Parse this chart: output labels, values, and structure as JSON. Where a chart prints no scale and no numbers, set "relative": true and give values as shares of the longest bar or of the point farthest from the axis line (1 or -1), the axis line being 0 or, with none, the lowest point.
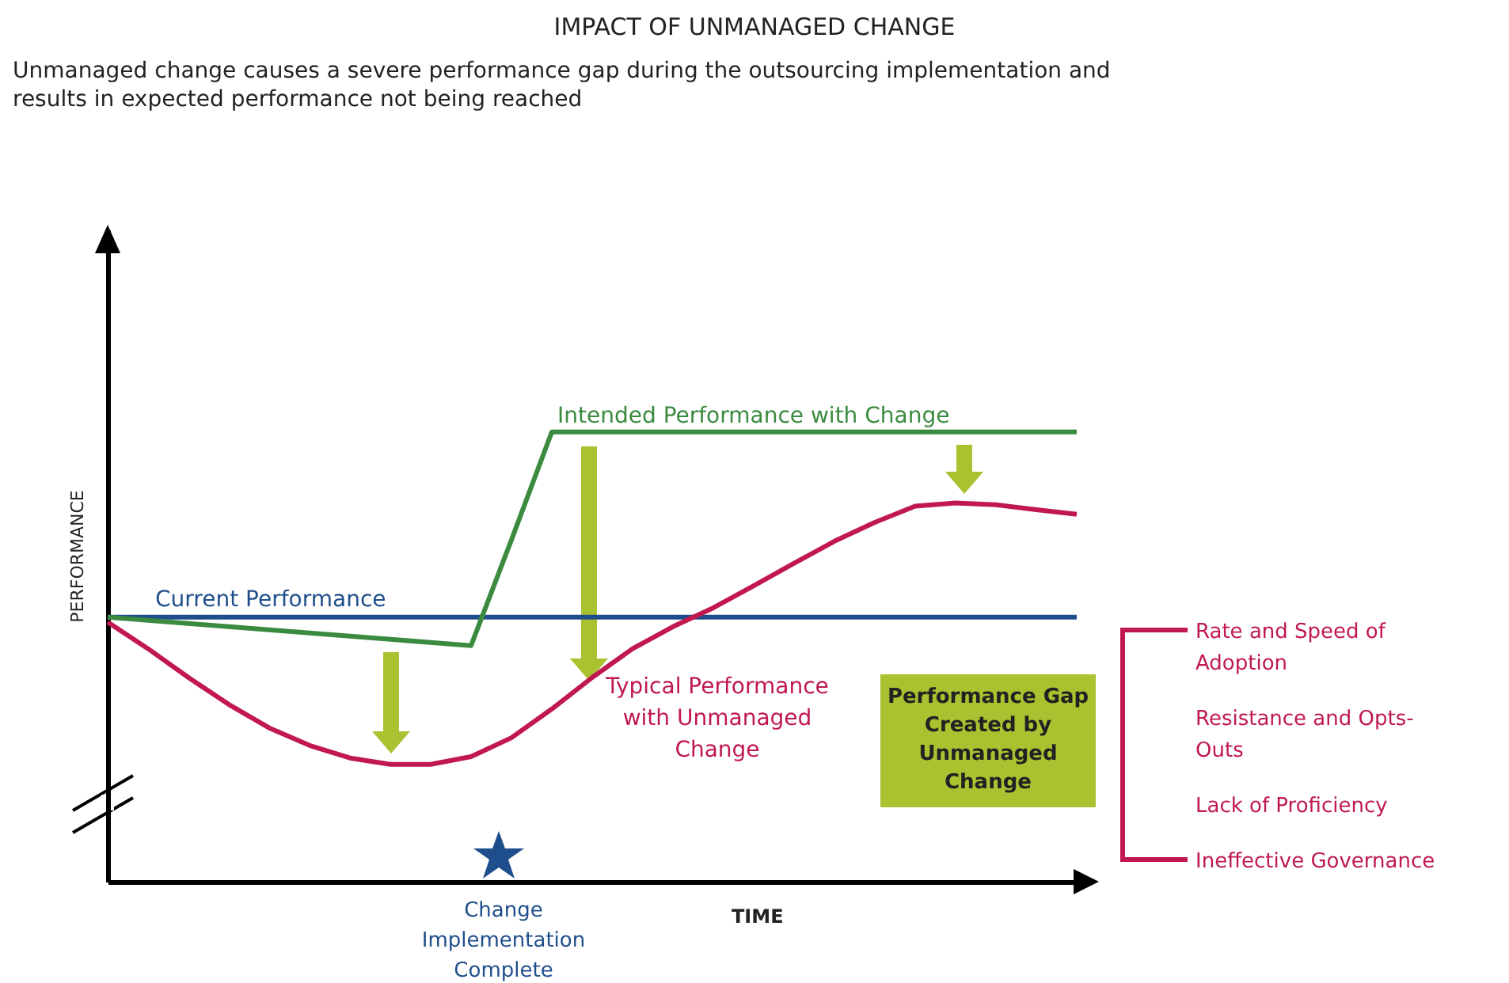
{
  "chart_data": {
    "type": "line",
    "title": "IMPACT OF UNMANAGED CHANGE",
    "subtitle": "Unmanaged change causes a severe performance gap during the outsourcing implementation and results in expected performance not being reached",
    "xlabel": "TIME",
    "ylabel": "PERFORMANCE",
    "relative": true,
    "tick_labels": false,
    "grid": false,
    "categories": [
      null,
      null,
      null,
      null,
      null,
      null,
      null,
      null,
      null,
      null,
      null,
      null,
      null,
      null,
      null,
      null,
      null,
      null,
      null,
      null,
      null,
      null,
      null,
      null,
      null
    ],
    "series": [
      {
        "name": "Current Performance",
        "color": "#1f4e8c",
        "values": [
          0.588,
          0.588,
          0.588,
          0.588,
          0.588,
          0.588,
          0.588,
          0.588,
          0.588,
          0.588,
          0.588,
          0.588,
          0.588,
          0.588,
          0.588,
          0.588,
          0.588,
          0.588,
          0.588,
          0.588,
          0.588,
          0.588,
          0.588,
          0.588,
          0.588
        ]
      },
      {
        "name": "Intended Performance with Change",
        "color": "#3a8a3f",
        "values": [
          0.588,
          0.581,
          0.574,
          0.567,
          0.56,
          0.553,
          0.546,
          0.539,
          0.532,
          0.525,
          0.76,
          1,
          1,
          1,
          1,
          1,
          1,
          1,
          1,
          1,
          1,
          1,
          1,
          1,
          1
        ]
      },
      {
        "name": "Typical Performance with Unmanaged Change",
        "color": "#c0184f",
        "values": [
          0.577,
          0.518,
          0.454,
          0.394,
          0.342,
          0.303,
          0.275,
          0.261,
          0.261,
          0.278,
          0.32,
          0.384,
          0.454,
          0.518,
          0.567,
          0.609,
          0.658,
          0.708,
          0.757,
          0.799,
          0.835,
          0.842,
          0.838,
          0.827,
          0.817
        ]
      }
    ],
    "annotations": [
      "Performance Gap Created by Unmanaged Change",
      "Change Implementation Complete",
      "Rate and Speed of Adoption",
      "Resistance and Opts-Outs",
      "Lack of Proficiency",
      "Ineffective Governance"
    ]
  }
}
